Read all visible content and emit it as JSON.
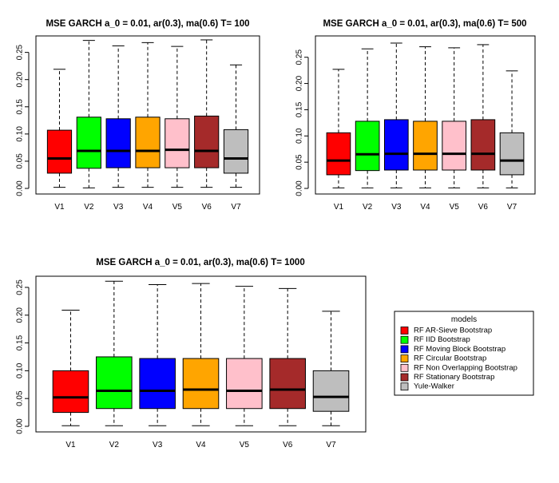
{
  "chart_data": [
    {
      "type": "boxplot",
      "title": "MSE GARCH a_0 = 0.01, ar(0.3), ma(0.6)  T= 100",
      "categories": [
        "V1",
        "V2",
        "V3",
        "V4",
        "V5",
        "V6",
        "V7"
      ],
      "ylim": [
        0,
        0.27
      ],
      "yticks": [
        "0.00",
        "0.05",
        "0.10",
        "0.15",
        "0.20",
        "0.25"
      ],
      "boxes": [
        {
          "min": 0.002,
          "q1": 0.028,
          "median": 0.055,
          "q3": 0.107,
          "max": 0.219,
          "color": "#FF0000"
        },
        {
          "min": 0.001,
          "q1": 0.037,
          "median": 0.069,
          "q3": 0.131,
          "max": 0.272,
          "color": "#00FF00"
        },
        {
          "min": 0.002,
          "q1": 0.038,
          "median": 0.069,
          "q3": 0.128,
          "max": 0.262,
          "color": "#0000FF"
        },
        {
          "min": 0.002,
          "q1": 0.038,
          "median": 0.069,
          "q3": 0.131,
          "max": 0.268,
          "color": "#FFA500"
        },
        {
          "min": 0.002,
          "q1": 0.038,
          "median": 0.071,
          "q3": 0.128,
          "max": 0.261,
          "color": "#FFC0CB"
        },
        {
          "min": 0.002,
          "q1": 0.038,
          "median": 0.069,
          "q3": 0.133,
          "max": 0.273,
          "color": "#A52A2A"
        },
        {
          "min": 0.002,
          "q1": 0.028,
          "median": 0.055,
          "q3": 0.108,
          "max": 0.227,
          "color": "#BEBEBE"
        }
      ]
    },
    {
      "type": "boxplot",
      "title": "MSE GARCH a_0 = 0.01, ar(0.3), ma(0.6)  T= 500",
      "categories": [
        "V1",
        "V2",
        "V3",
        "V4",
        "V5",
        "V6",
        "V7"
      ],
      "ylim": [
        0,
        0.28
      ],
      "yticks": [
        "0.00",
        "0.05",
        "0.10",
        "0.15",
        "0.20",
        "0.25"
      ],
      "boxes": [
        {
          "min": 0.001,
          "q1": 0.026,
          "median": 0.053,
          "q3": 0.106,
          "max": 0.227,
          "color": "#FF0000"
        },
        {
          "min": 0.001,
          "q1": 0.034,
          "median": 0.065,
          "q3": 0.128,
          "max": 0.266,
          "color": "#00FF00"
        },
        {
          "min": 0.001,
          "q1": 0.035,
          "median": 0.066,
          "q3": 0.131,
          "max": 0.277,
          "color": "#0000FF"
        },
        {
          "min": 0.001,
          "q1": 0.035,
          "median": 0.066,
          "q3": 0.128,
          "max": 0.27,
          "color": "#FFA500"
        },
        {
          "min": 0.001,
          "q1": 0.035,
          "median": 0.066,
          "q3": 0.128,
          "max": 0.268,
          "color": "#FFC0CB"
        },
        {
          "min": 0.001,
          "q1": 0.035,
          "median": 0.066,
          "q3": 0.131,
          "max": 0.274,
          "color": "#A52A2A"
        },
        {
          "min": 0.001,
          "q1": 0.026,
          "median": 0.053,
          "q3": 0.106,
          "max": 0.224,
          "color": "#BEBEBE"
        }
      ]
    },
    {
      "type": "boxplot",
      "title": "MSE GARCH a_0 = 0.01, ar(0.3), ma(0.6)  T= 1000",
      "categories": [
        "V1",
        "V2",
        "V3",
        "V4",
        "V5",
        "V6",
        "V7"
      ],
      "ylim": [
        0,
        0.26
      ],
      "yticks": [
        "0.00",
        "0.05",
        "0.10",
        "0.15",
        "0.20",
        "0.25"
      ],
      "boxes": [
        {
          "min": 0.001,
          "q1": 0.025,
          "median": 0.052,
          "q3": 0.1,
          "max": 0.209,
          "color": "#FF0000"
        },
        {
          "min": 0.001,
          "q1": 0.032,
          "median": 0.064,
          "q3": 0.125,
          "max": 0.261,
          "color": "#00FF00"
        },
        {
          "min": 0.001,
          "q1": 0.032,
          "median": 0.064,
          "q3": 0.122,
          "max": 0.255,
          "color": "#0000FF"
        },
        {
          "min": 0.001,
          "q1": 0.032,
          "median": 0.066,
          "q3": 0.122,
          "max": 0.257,
          "color": "#FFA500"
        },
        {
          "min": 0.001,
          "q1": 0.032,
          "median": 0.064,
          "q3": 0.122,
          "max": 0.252,
          "color": "#FFC0CB"
        },
        {
          "min": 0.001,
          "q1": 0.032,
          "median": 0.066,
          "q3": 0.122,
          "max": 0.248,
          "color": "#A52A2A"
        },
        {
          "min": 0.001,
          "q1": 0.027,
          "median": 0.053,
          "q3": 0.1,
          "max": 0.207,
          "color": "#BEBEBE"
        }
      ]
    }
  ],
  "legend": {
    "title": "models",
    "placement": "right",
    "items": [
      {
        "label": "RF AR-Sieve Bootstrap",
        "color": "#FF0000"
      },
      {
        "label": "RF IID Bootstrap",
        "color": "#00FF00"
      },
      {
        "label": "RF Moving Block Bootstrap",
        "color": "#0000FF"
      },
      {
        "label": "RF Circular Bootstrap",
        "color": "#FFA500"
      },
      {
        "label": "RF Non Overlapping Bootstrap",
        "color": "#FFC0CB"
      },
      {
        "label": "RF Stationary Bootstrap",
        "color": "#A52A2A"
      },
      {
        "label": "Yule-Walker",
        "color": "#BEBEBE"
      }
    ]
  }
}
